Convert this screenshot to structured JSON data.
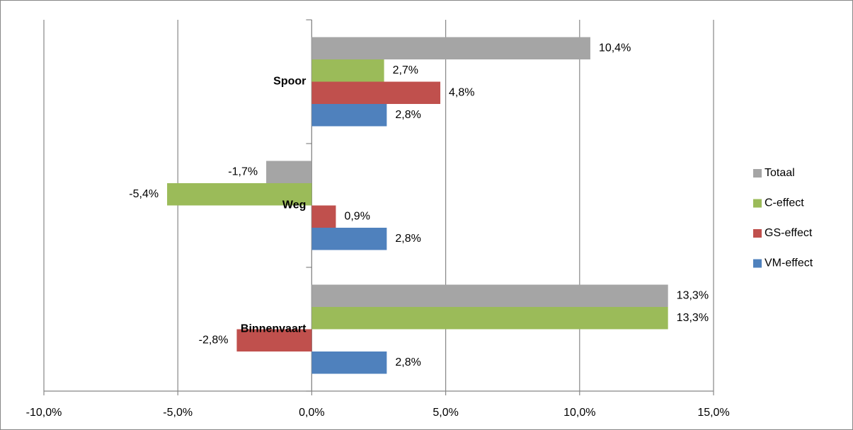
{
  "chart_data": {
    "type": "bar",
    "orientation": "horizontal",
    "categories": [
      "Spoor",
      "Weg",
      "Binnenvaart"
    ],
    "series": [
      {
        "name": "Totaal",
        "color": "#a5a5a5",
        "values": [
          10.4,
          -1.7,
          13.3
        ],
        "value_labels": [
          "10,4%",
          "-1,7%",
          "13,3%"
        ]
      },
      {
        "name": "C-effect",
        "color": "#9bbb59",
        "values": [
          2.7,
          -5.4,
          13.3
        ],
        "value_labels": [
          "2,7%",
          "-5,4%",
          "13,3%"
        ]
      },
      {
        "name": "GS-effect",
        "color": "#c0504d",
        "values": [
          4.8,
          0.9,
          -2.8
        ],
        "value_labels": [
          "4,8%",
          "0,9%",
          "-2,8%"
        ]
      },
      {
        "name": "VM-effect",
        "color": "#4f81bd",
        "values": [
          2.8,
          2.8,
          2.8
        ],
        "value_labels": [
          "2,8%",
          "2,8%",
          "2,8%"
        ]
      }
    ],
    "xlim": [
      -10,
      15
    ],
    "xticks": [
      {
        "value": -10,
        "label": "-10,0%"
      },
      {
        "value": -5,
        "label": "-5,0%"
      },
      {
        "value": 0,
        "label": "0,0%"
      },
      {
        "value": 5,
        "label": "5,0%"
      },
      {
        "value": 10,
        "label": "10,0%"
      },
      {
        "value": 15,
        "label": "15,0%"
      }
    ],
    "grid": true,
    "legend": "right"
  }
}
